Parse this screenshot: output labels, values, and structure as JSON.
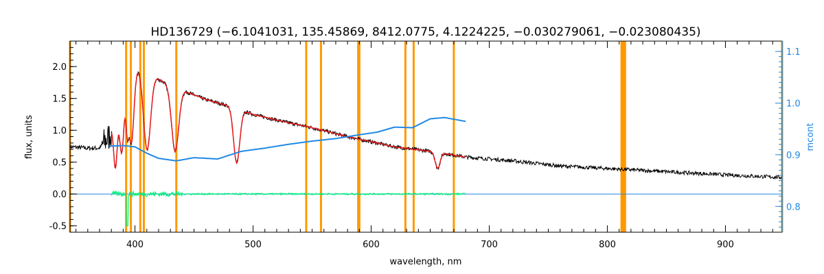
{
  "chart_data": {
    "type": "line",
    "title": "HD136729   (−6.1041031, 135.45869, 8412.0775, 4.1224225, −0.030279061, −0.023080435)",
    "xlabel": "wavelength, nm",
    "ylabel": "flux, units",
    "y2label": "mcont",
    "xlim": [
      345,
      948
    ],
    "ylim": [
      -0.6,
      2.4
    ],
    "y2lim": [
      0.75,
      1.12
    ],
    "x_ticks": [
      400,
      500,
      600,
      700,
      800,
      900
    ],
    "x_tick_labels": [
      "400",
      "500",
      "600",
      "700",
      "800",
      "900"
    ],
    "y_ticks": [
      -0.5,
      0.0,
      0.5,
      1.0,
      1.5,
      2.0
    ],
    "y_tick_labels": [
      "-0.5",
      "0.0",
      "0.5",
      "1.0",
      "1.5",
      "2.0"
    ],
    "y2_ticks": [
      0.8,
      0.9,
      1.0,
      1.1
    ],
    "y2_tick_labels": [
      "0.8",
      "0.9",
      "1.0",
      "1.1"
    ],
    "grid": false,
    "colors": {
      "observed": "#000000",
      "model": "#e41a1c",
      "continuum": "#1e88e5",
      "residual": "#00ee77",
      "masks": "#ff9900",
      "right_axis": "#1e88e5"
    },
    "continuum_nodes": [
      {
        "x": 378,
        "y": 0.75
      },
      {
        "x": 390,
        "y": 0.76
      },
      {
        "x": 400,
        "y": 0.74
      },
      {
        "x": 410,
        "y": 0.64
      },
      {
        "x": 420,
        "y": 0.56
      },
      {
        "x": 435,
        "y": 0.52
      },
      {
        "x": 450,
        "y": 0.57
      },
      {
        "x": 470,
        "y": 0.55
      },
      {
        "x": 490,
        "y": 0.67
      },
      {
        "x": 510,
        "y": 0.72
      },
      {
        "x": 530,
        "y": 0.78
      },
      {
        "x": 550,
        "y": 0.83
      },
      {
        "x": 570,
        "y": 0.87
      },
      {
        "x": 590,
        "y": 0.93
      },
      {
        "x": 605,
        "y": 0.97
      },
      {
        "x": 620,
        "y": 1.05
      },
      {
        "x": 635,
        "y": 1.04
      },
      {
        "x": 650,
        "y": 1.18
      },
      {
        "x": 662,
        "y": 1.2
      },
      {
        "x": 680,
        "y": 1.14
      }
    ],
    "observed_nodes": [
      {
        "x": 345,
        "y": 0.74
      },
      {
        "x": 360,
        "y": 0.72
      },
      {
        "x": 370,
        "y": 0.72
      },
      {
        "x": 378,
        "y": 0.9
      },
      {
        "x": 385,
        "y": 1.3
      },
      {
        "x": 392,
        "y": 1.75
      },
      {
        "x": 400,
        "y": 2.0
      },
      {
        "x": 410,
        "y": 1.95
      },
      {
        "x": 420,
        "y": 1.8
      },
      {
        "x": 430,
        "y": 1.7
      },
      {
        "x": 440,
        "y": 1.63
      },
      {
        "x": 460,
        "y": 1.48
      },
      {
        "x": 480,
        "y": 1.38
      },
      {
        "x": 500,
        "y": 1.25
      },
      {
        "x": 520,
        "y": 1.16
      },
      {
        "x": 550,
        "y": 1.04
      },
      {
        "x": 580,
        "y": 0.9
      },
      {
        "x": 620,
        "y": 0.74
      },
      {
        "x": 650,
        "y": 0.67
      },
      {
        "x": 680,
        "y": 0.58
      },
      {
        "x": 720,
        "y": 0.52
      },
      {
        "x": 760,
        "y": 0.44
      },
      {
        "x": 800,
        "y": 0.4
      },
      {
        "x": 850,
        "y": 0.35
      },
      {
        "x": 900,
        "y": 0.3
      },
      {
        "x": 948,
        "y": 0.26
      }
    ],
    "absorption_lines": [
      {
        "center": 383.5,
        "depth": 0.8,
        "width": 1.5
      },
      {
        "center": 388.9,
        "depth": 0.9,
        "width": 1.8
      },
      {
        "center": 393.4,
        "depth": 0.6,
        "width": 1.2
      },
      {
        "center": 397.0,
        "depth": 1.1,
        "width": 2.2
      },
      {
        "center": 410.2,
        "depth": 1.25,
        "width": 3.0
      },
      {
        "center": 434.0,
        "depth": 1.0,
        "width": 3.0
      },
      {
        "center": 486.1,
        "depth": 0.85,
        "width": 2.6
      },
      {
        "center": 656.3,
        "depth": 0.25,
        "width": 2.0
      }
    ],
    "model_range": [
      380,
      680
    ],
    "residual_range": [
      380,
      680
    ],
    "mask_lines": [
      392.5,
      396.5,
      404.5,
      407.5,
      435.0,
      545.0,
      557.5,
      589.0,
      590.0,
      629.0,
      636.0,
      670.0,
      812.0,
      813.5,
      815.0
    ],
    "mask_edges": [
      345,
      948
    ]
  }
}
